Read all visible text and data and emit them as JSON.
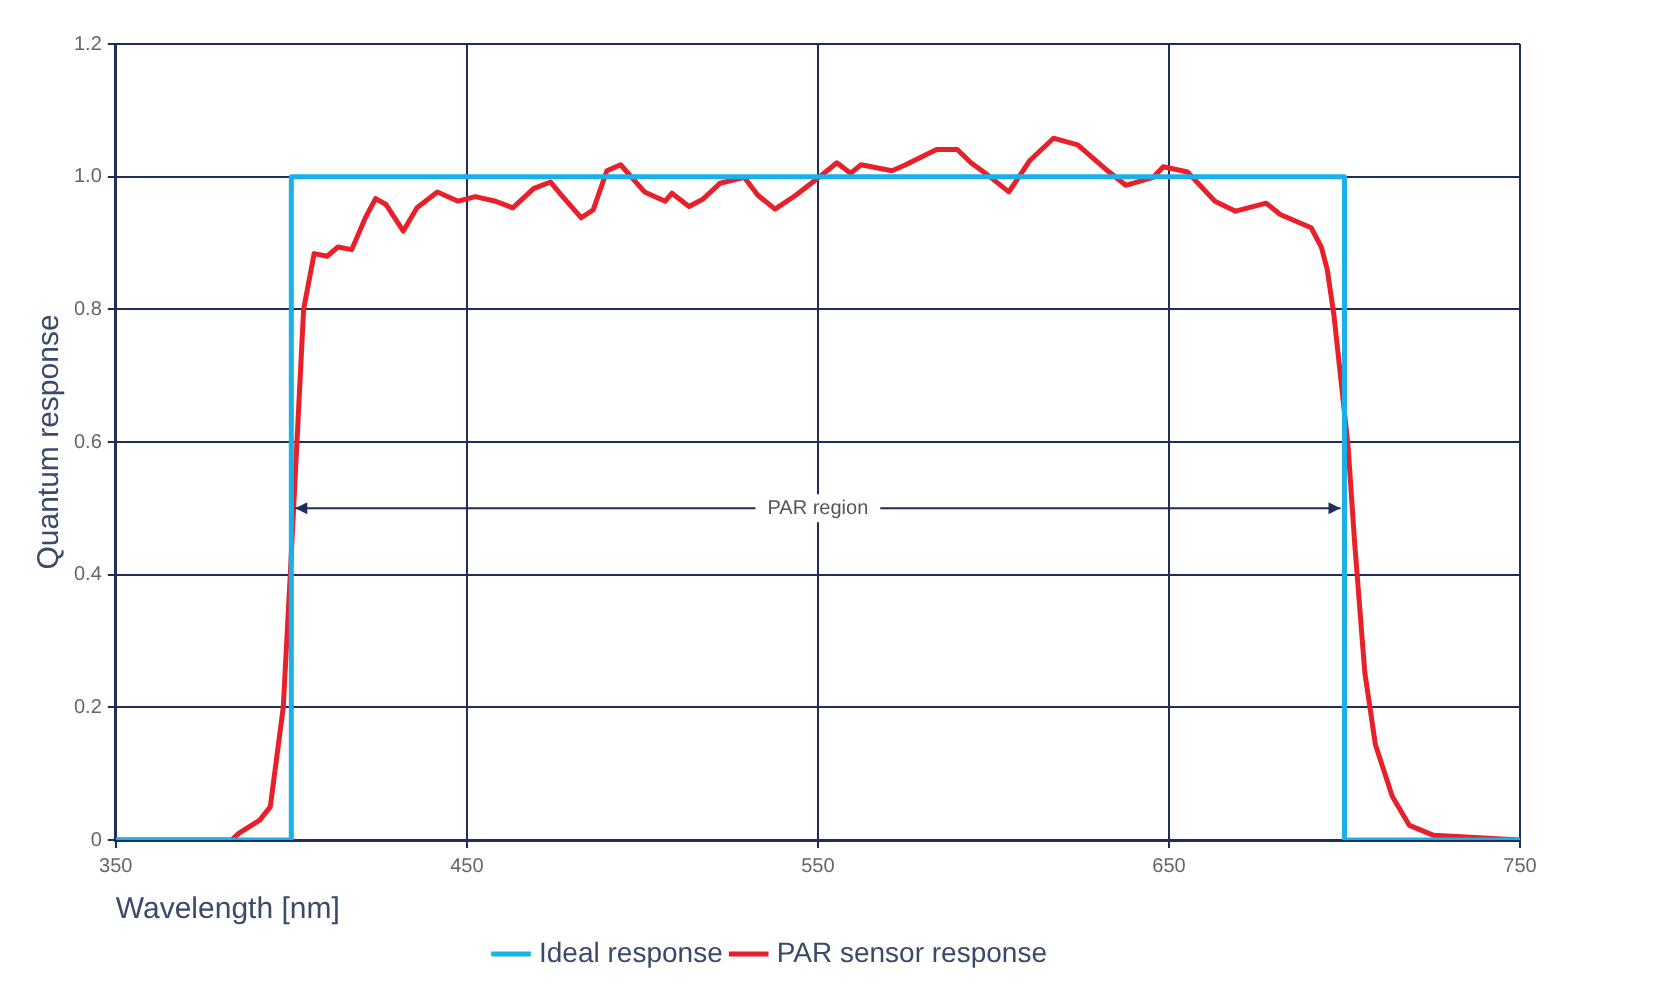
{
  "chart_data": {
    "type": "line",
    "ylabel": "Quantum response",
    "xlabel": "Wavelength [nm]",
    "xlim": [
      350,
      750
    ],
    "xticks": [
      350,
      450,
      550,
      650,
      750
    ],
    "ylim": [
      0,
      1.2
    ],
    "yticks": [
      0,
      0.2,
      0.4,
      0.6,
      0.8,
      {
        "value": 1,
        "label": "1.0"
      },
      1.2
    ],
    "grid": true,
    "legend": "bottom",
    "marker": "none",
    "line_style": "solid",
    "annotations": [
      {
        "text": "PAR region",
        "x": 400,
        "y": 0.5
      }
    ],
    "series": [
      {
        "name": "Ideal response",
        "color": "#1ab0e8",
        "x": [
          350,
          400,
          400,
          700,
          700,
          750
        ],
        "values": [
          0,
          0,
          1,
          1,
          0,
          0
        ]
      },
      {
        "name": "PAR sensor response",
        "color": "#e8202a",
        "x": [
          350,
          383,
          385,
          391,
          394,
          397.7,
          399.7,
          401.6,
          403.5,
          406.5,
          410.2,
          413.3,
          417.2,
          421.1,
          424,
          427,
          431.9,
          435.8,
          441.6,
          447.5,
          452.4,
          458.2,
          463.1,
          469,
          473.8,
          476.8,
          482.6,
          486,
          489.9,
          493.8,
          500.6,
          506.5,
          508.4,
          513.3,
          517.2,
          522.1,
          529,
          532.9,
          537.8,
          543.7,
          550.5,
          555.4,
          559.3,
          562.3,
          571.1,
          575,
          583.8,
          589.7,
          593.6,
          598.5,
          604.4,
          610.3,
          617.1,
          624,
          631.8,
          637.7,
          645.5,
          648.4,
          655.3,
          663.1,
          669,
          677.7,
          681.7,
          690.5,
          693.4,
          695.1,
          697,
          699,
          701,
          702.9,
          705.8,
          708.8,
          713.6,
          718.5,
          725.4,
          750
        ],
        "values": [
          0,
          0,
          0.01,
          0.03,
          0.05,
          0.2,
          0.4,
          0.6,
          0.8,
          0.884,
          0.88,
          0.894,
          0.89,
          0.938,
          0.967,
          0.958,
          0.918,
          0.953,
          0.977,
          0.963,
          0.97,
          0.963,
          0.953,
          0.982,
          0.992,
          0.973,
          0.938,
          0.95,
          1.009,
          1.018,
          0.977,
          0.963,
          0.975,
          0.955,
          0.966,
          0.99,
          0.999,
          0.972,
          0.951,
          0.972,
          1.0,
          1.021,
          1.005,
          1.018,
          1.009,
          1.018,
          1.041,
          1.041,
          1.021,
          1.002,
          0.977,
          1.024,
          1.058,
          1.048,
          1.012,
          0.987,
          0.999,
          1.015,
          1.007,
          0.963,
          0.948,
          0.96,
          0.943,
          0.923,
          0.894,
          0.86,
          0.791,
          0.693,
          0.595,
          0.448,
          0.252,
          0.144,
          0.066,
          0.022,
          0.007,
          0
        ]
      }
    ]
  }
}
